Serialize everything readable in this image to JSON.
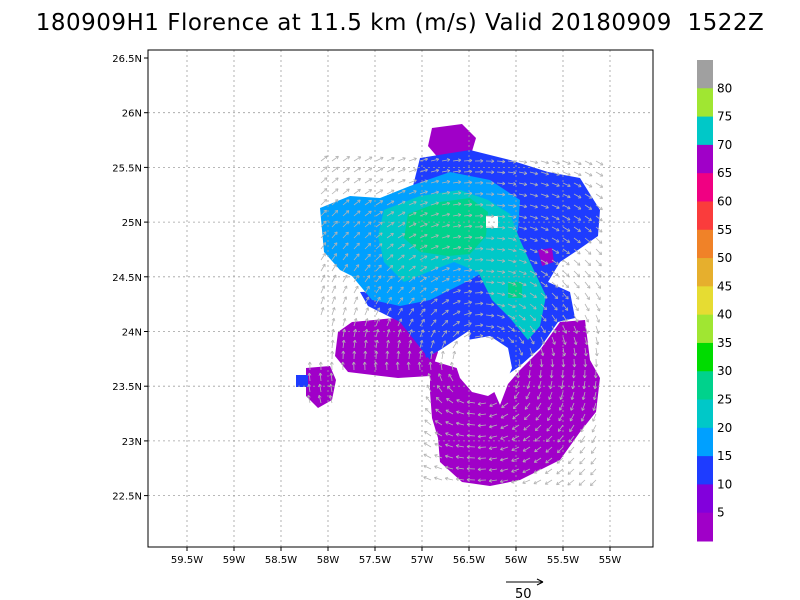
{
  "title": "180909H1 Florence at 11.5 km (m/s) Valid 20180909  1522Z",
  "axes": {
    "lat_ticks": [
      "26.5N",
      "26N",
      "25.5N",
      "25N",
      "24.5N",
      "24N",
      "23.5N",
      "23N",
      "22.5N"
    ],
    "lon_ticks": [
      "59.5W",
      "59W",
      "58.5W",
      "58W",
      "57.5W",
      "57W",
      "56.5W",
      "56W",
      "55.5W",
      "55W"
    ]
  },
  "colorbar": {
    "labels": [
      "80",
      "75",
      "70",
      "65",
      "60",
      "55",
      "50",
      "45",
      "40",
      "35",
      "30",
      "25",
      "20",
      "15",
      "10",
      "5"
    ],
    "colors": [
      "#a0a0a0",
      "#a0e632",
      "#00c8c8",
      "#a000c8",
      "#f00082",
      "#fa3c3c",
      "#f08228",
      "#e6af2d",
      "#e6dc32",
      "#a0e632",
      "#00dc00",
      "#00d28c",
      "#00c8c8",
      "#00a0ff",
      "#1e3cff",
      "#8200dc",
      "#a000c8"
    ]
  },
  "reference_vector": {
    "label": "50"
  },
  "chart_data": {
    "type": "heatmap",
    "title": "180909H1 Florence at 11.5 km (m/s) Valid 20180909  1522Z",
    "xlabel": "",
    "ylabel": "",
    "x_range_deg_w": [
      59.9,
      54.5
    ],
    "y_range_deg_n": [
      22.05,
      26.55
    ],
    "grid": true,
    "legend": "colorbar right",
    "units": "m/s",
    "wind_regions": [
      {
        "speed_band": "5-10",
        "lon_w": 56.7,
        "lat_n": 23.0,
        "extent": "southern and southeastern eyewall"
      },
      {
        "speed_band": "5-10",
        "lon_w": 57.6,
        "lat_n": 23.95,
        "extent": "western lobe"
      },
      {
        "speed_band": "5-10",
        "lon_w": 58.1,
        "lat_n": 23.55,
        "extent": "small isolated patch"
      },
      {
        "speed_band": "10-15",
        "lon_w": 55.7,
        "lat_n": 24.8,
        "extent": "northeastern region"
      },
      {
        "speed_band": "15-20",
        "lon_w": 57.2,
        "lat_n": 24.7,
        "extent": "northwestern region"
      },
      {
        "speed_band": "20-25",
        "lon_w": 56.8,
        "lat_n": 24.9,
        "extent": "north of center"
      }
    ],
    "eye": {
      "lon_w": 56.35,
      "lat_n": 23.6
    }
  }
}
